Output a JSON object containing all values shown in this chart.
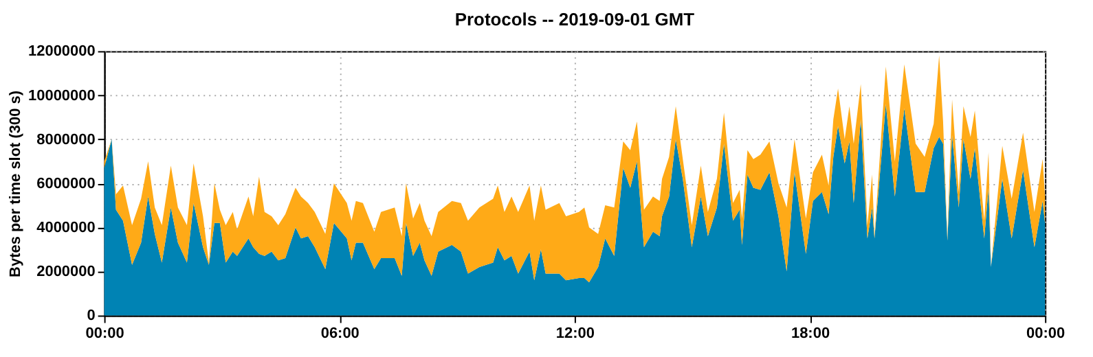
{
  "chart_data": {
    "type": "area",
    "title": "Protocols -- 2019-09-01 GMT",
    "ylabel": "Bytes per time slot (300 s)",
    "stacked": true,
    "grid": true,
    "xlim": [
      0,
      24
    ],
    "xticks": [
      {
        "value": 0,
        "label": "00:00"
      },
      {
        "value": 6,
        "label": "06:00"
      },
      {
        "value": 12,
        "label": "12:00"
      },
      {
        "value": 18,
        "label": "18:00"
      },
      {
        "value": 24,
        "label": "00:00"
      }
    ],
    "ylim": [
      0,
      12000000
    ],
    "yticks": [
      0,
      2000000,
      4000000,
      6000000,
      8000000,
      10000000,
      12000000
    ],
    "x": [
      0,
      0.19,
      0.3,
      0.48,
      0.71,
      0.94,
      1.12,
      1.29,
      1.47,
      1.7,
      1.88,
      2.11,
      2.28,
      2.52,
      2.67,
      2.81,
      2.95,
      3.1,
      3.28,
      3.39,
      3.68,
      3.8,
      3.95,
      4.09,
      4.27,
      4.44,
      4.62,
      4.88,
      5.02,
      5.2,
      5.37,
      5.64,
      5.86,
      6.19,
      6.31,
      6.42,
      6.6,
      6.89,
      7.06,
      7.41,
      7.59,
      7.7,
      7.88,
      8.05,
      8.17,
      8.35,
      8.52,
      8.87,
      9.1,
      9.28,
      9.57,
      9.92,
      10.04,
      10.21,
      10.39,
      10.56,
      10.85,
      10.97,
      11.14,
      11.26,
      11.61,
      11.78,
      12.11,
      12.25,
      12.37,
      12.6,
      12.78,
      13.01,
      13.24,
      13.42,
      13.59,
      13.77,
      14.0,
      14.17,
      14.23,
      14.41,
      14.58,
      14.76,
      14.99,
      15.22,
      15.4,
      15.63,
      15.81,
      16.04,
      16.21,
      16.27,
      16.41,
      16.56,
      16.74,
      16.97,
      17.2,
      17.41,
      17.61,
      17.9,
      18.08,
      18.31,
      18.48,
      18.6,
      18.72,
      18.89,
      19.01,
      19.12,
      19.3,
      19.47,
      19.59,
      19.65,
      19.94,
      20.17,
      20.41,
      20.7,
      20.93,
      21.16,
      21.3,
      21.4,
      21.51,
      21.63,
      21.8,
      21.92,
      22.1,
      22.21,
      22.45,
      22.56,
      22.62,
      22.91,
      23.15,
      23.44,
      23.73,
      23.94,
      24
    ],
    "series": [
      {
        "color": "#0083b4",
        "values": [
          6700000,
          8000000,
          4800000,
          4300000,
          2300000,
          3300000,
          5400000,
          3700000,
          2400000,
          4900000,
          3300000,
          2400000,
          5100000,
          3100000,
          2300000,
          4200000,
          4200000,
          2400000,
          2900000,
          2700000,
          3500000,
          3100000,
          2800000,
          2700000,
          2900000,
          2500000,
          2600000,
          4000000,
          3500000,
          3600000,
          3100000,
          2100000,
          4200000,
          3500000,
          2500000,
          3300000,
          3300000,
          2100000,
          2600000,
          2600000,
          1800000,
          4200000,
          2700000,
          3300000,
          2500000,
          1800000,
          2900000,
          3200000,
          2900000,
          1900000,
          2200000,
          2400000,
          3100000,
          2500000,
          2700000,
          1900000,
          2900000,
          1600000,
          3000000,
          1900000,
          1900000,
          1600000,
          1700000,
          1700000,
          1500000,
          2200000,
          3500000,
          2700000,
          6700000,
          5800000,
          7000000,
          3100000,
          3800000,
          3600000,
          4500000,
          5400000,
          8000000,
          6200000,
          3100000,
          5400000,
          3600000,
          4900000,
          7800000,
          4300000,
          4800000,
          3200000,
          6400000,
          5800000,
          5700000,
          6500000,
          4500000,
          2000000,
          6500000,
          2800000,
          5200000,
          5600000,
          4600000,
          7200000,
          8600000,
          6900000,
          7900000,
          5100000,
          8900000,
          3500000,
          4900000,
          3500000,
          9600000,
          5400000,
          9400000,
          5600000,
          5600000,
          7600000,
          8100000,
          7800000,
          3400000,
          8200000,
          4900000,
          8000000,
          6200000,
          7600000,
          3500000,
          5800000,
          2200000,
          6200000,
          3500000,
          6600000,
          3100000,
          5200000,
          4200000
        ]
      },
      {
        "color": "#ffaa17",
        "values": [
          300000,
          0,
          700000,
          1600000,
          1800000,
          2000000,
          1600000,
          1200000,
          1700000,
          1900000,
          1600000,
          1700000,
          1800000,
          1400000,
          100000,
          1800000,
          600000,
          1700000,
          1800000,
          1200000,
          1900000,
          1400000,
          3500000,
          2000000,
          1600000,
          1600000,
          2000000,
          1800000,
          1900000,
          1500000,
          1600000,
          1600000,
          1800000,
          1600000,
          1800000,
          1900000,
          1800000,
          1700000,
          2100000,
          2300000,
          1800000,
          1800000,
          1700000,
          1800000,
          1800000,
          1800000,
          1800000,
          2000000,
          2200000,
          2400000,
          2700000,
          2900000,
          2800000,
          2200000,
          2700000,
          2800000,
          3000000,
          2700000,
          2900000,
          2900000,
          3200000,
          2900000,
          3000000,
          3200000,
          2500000,
          1500000,
          1500000,
          2200000,
          1200000,
          1700000,
          1800000,
          1700000,
          1600000,
          1600000,
          1700000,
          1800000,
          1500000,
          900000,
          1000000,
          1400000,
          1100000,
          1300000,
          1400000,
          800000,
          900000,
          1200000,
          1100000,
          1300000,
          1600000,
          1400000,
          1500000,
          2900000,
          1500000,
          1600000,
          1300000,
          1700000,
          1300000,
          1700000,
          1700000,
          1100000,
          1600000,
          2700000,
          1600000,
          600000,
          1500000,
          100000,
          1700000,
          1600000,
          2000000,
          2200000,
          1600000,
          1100000,
          3700000,
          1000000,
          100000,
          1600000,
          700000,
          1500000,
          1900000,
          1700000,
          800000,
          1600000,
          0,
          1500000,
          1800000,
          1700000,
          1600000,
          1900000,
          1200000
        ]
      }
    ]
  }
}
